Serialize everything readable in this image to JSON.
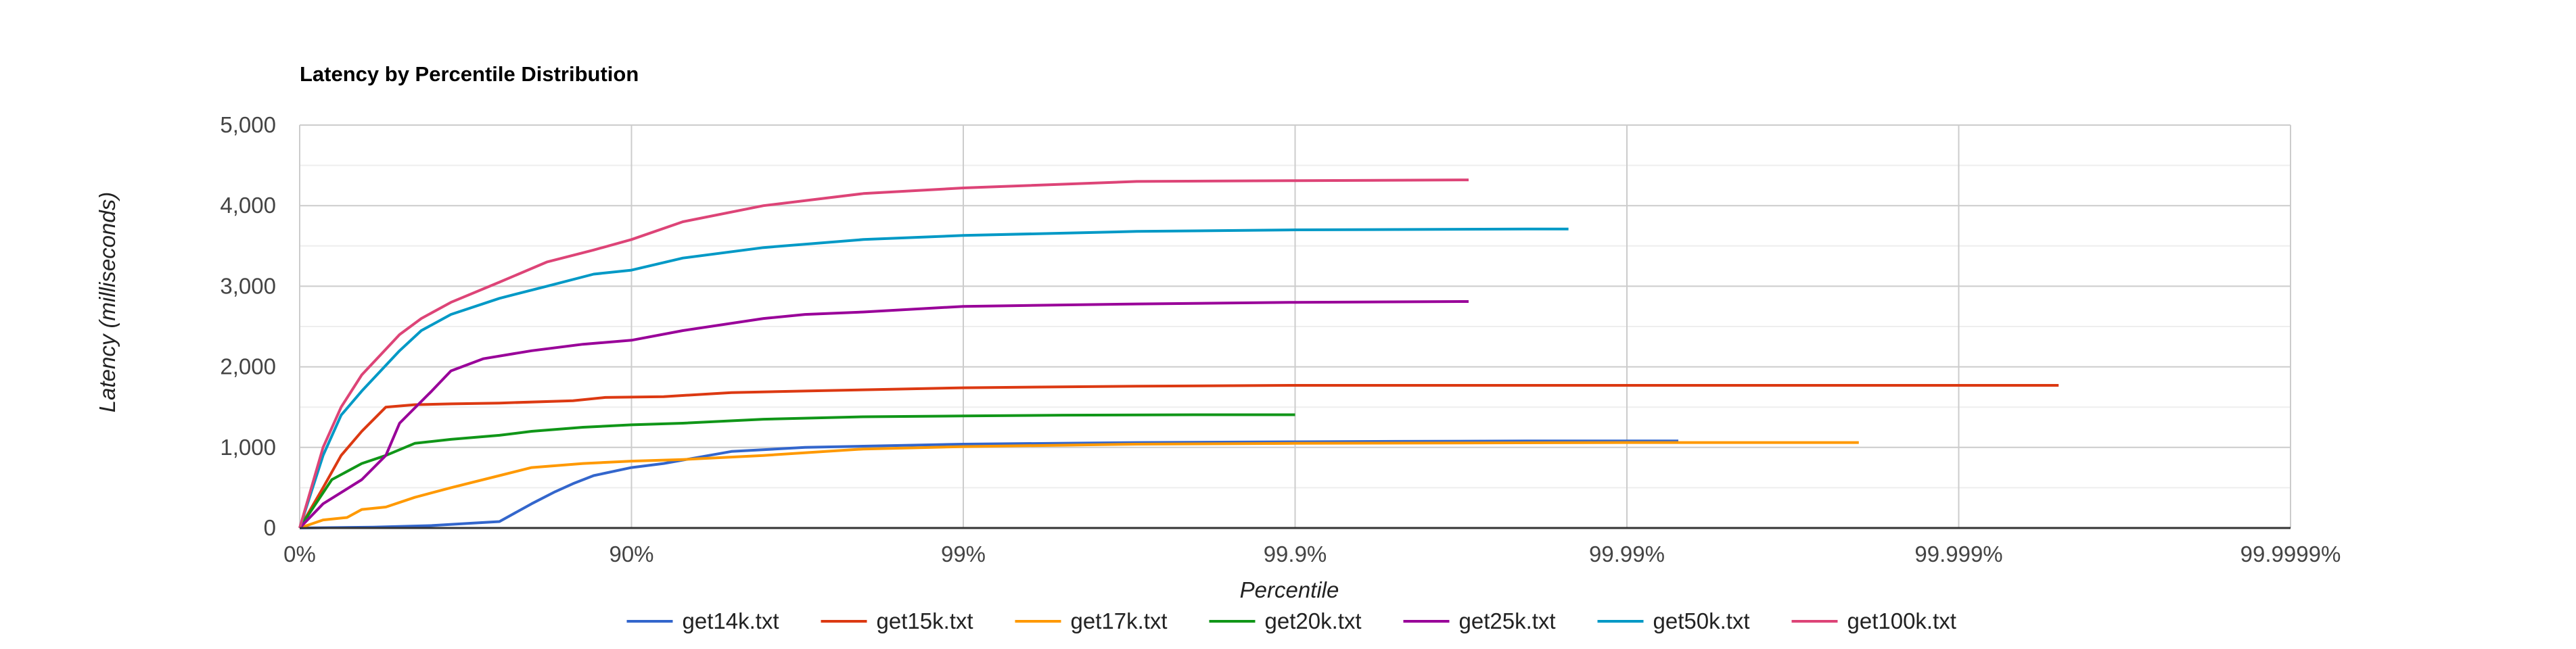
{
  "chart_data": {
    "type": "line",
    "title": "Latency by Percentile Distribution",
    "xlabel": "Percentile",
    "ylabel": "Latency (milliseconds)",
    "x_scale": "percentile-log (nines)",
    "x_ticks": [
      "0%",
      "90%",
      "99%",
      "99.9%",
      "99.99%",
      "99.999%",
      "99.9999%"
    ],
    "y_ticks": [
      "0",
      "1,000",
      "2,000",
      "3,000",
      "4,000",
      "5,000"
    ],
    "ylim": [
      0,
      5000
    ],
    "grid": true,
    "legend_position": "bottom",
    "series": [
      {
        "name": "get14k.txt",
        "color": "#3366cc",
        "points": [
          [
            0,
            0
          ],
          [
            40,
            10
          ],
          [
            60,
            30
          ],
          [
            70,
            60
          ],
          [
            75,
            80
          ],
          [
            80,
            300
          ],
          [
            83,
            450
          ],
          [
            85,
            550
          ],
          [
            87,
            650
          ],
          [
            90,
            750
          ],
          [
            92,
            800
          ],
          [
            95,
            950
          ],
          [
            97,
            1000
          ],
          [
            99,
            1040
          ],
          [
            99.7,
            1060
          ],
          [
            99.9,
            1070
          ],
          [
            99.95,
            1075
          ],
          [
            99.98,
            1080
          ],
          [
            99.993,
            1080
          ]
        ]
      },
      {
        "name": "get15k.txt",
        "color": "#dc3912",
        "points": [
          [
            0,
            0
          ],
          [
            15,
            500
          ],
          [
            25,
            900
          ],
          [
            35,
            1200
          ],
          [
            45,
            1500
          ],
          [
            55,
            1530
          ],
          [
            65,
            1540
          ],
          [
            75,
            1550
          ],
          [
            85,
            1580
          ],
          [
            88,
            1620
          ],
          [
            92,
            1630
          ],
          [
            95,
            1680
          ],
          [
            97,
            1700
          ],
          [
            99,
            1740
          ],
          [
            99.7,
            1760
          ],
          [
            99.9,
            1770
          ],
          [
            99.99,
            1770
          ],
          [
            99.999,
            1770
          ],
          [
            99.9995,
            1770
          ]
        ]
      },
      {
        "name": "get17k.txt",
        "color": "#ff9900",
        "points": [
          [
            0,
            0
          ],
          [
            15,
            100
          ],
          [
            28,
            130
          ],
          [
            35,
            230
          ],
          [
            45,
            260
          ],
          [
            55,
            380
          ],
          [
            65,
            500
          ],
          [
            75,
            650
          ],
          [
            80,
            750
          ],
          [
            86,
            800
          ],
          [
            90,
            830
          ],
          [
            93,
            850
          ],
          [
            96,
            900
          ],
          [
            98,
            980
          ],
          [
            99,
            1010
          ],
          [
            99.7,
            1040
          ],
          [
            99.9,
            1050
          ],
          [
            99.99,
            1060
          ],
          [
            99.998,
            1060
          ]
        ]
      },
      {
        "name": "get20k.txt",
        "color": "#109618",
        "points": [
          [
            0,
            0
          ],
          [
            20,
            600
          ],
          [
            35,
            800
          ],
          [
            45,
            900
          ],
          [
            55,
            1050
          ],
          [
            65,
            1100
          ],
          [
            75,
            1150
          ],
          [
            80,
            1200
          ],
          [
            86,
            1250
          ],
          [
            90,
            1280
          ],
          [
            93,
            1300
          ],
          [
            96,
            1350
          ],
          [
            98,
            1380
          ],
          [
            99,
            1390
          ],
          [
            99.5,
            1400
          ],
          [
            99.8,
            1405
          ],
          [
            99.9,
            1405
          ]
        ]
      },
      {
        "name": "get25k.txt",
        "color": "#990099",
        "points": [
          [
            0,
            0
          ],
          [
            15,
            300
          ],
          [
            35,
            600
          ],
          [
            45,
            900
          ],
          [
            50,
            1300
          ],
          [
            60,
            1700
          ],
          [
            65,
            1950
          ],
          [
            72,
            2100
          ],
          [
            80,
            2200
          ],
          [
            86,
            2280
          ],
          [
            90,
            2330
          ],
          [
            93,
            2450
          ],
          [
            96,
            2600
          ],
          [
            97,
            2650
          ],
          [
            98,
            2680
          ],
          [
            99,
            2750
          ],
          [
            99.7,
            2780
          ],
          [
            99.9,
            2800
          ],
          [
            99.97,
            2810
          ]
        ]
      },
      {
        "name": "get50k.txt",
        "color": "#0099c6",
        "points": [
          [
            0,
            0
          ],
          [
            15,
            900
          ],
          [
            25,
            1400
          ],
          [
            35,
            1700
          ],
          [
            50,
            2200
          ],
          [
            57,
            2450
          ],
          [
            65,
            2650
          ],
          [
            75,
            2850
          ],
          [
            82,
            3000
          ],
          [
            87,
            3150
          ],
          [
            90,
            3200
          ],
          [
            93,
            3350
          ],
          [
            96,
            3480
          ],
          [
            98,
            3580
          ],
          [
            99,
            3630
          ],
          [
            99.7,
            3680
          ],
          [
            99.9,
            3700
          ],
          [
            99.98,
            3710
          ],
          [
            99.985,
            3710
          ]
        ]
      },
      {
        "name": "get100k.txt",
        "color": "#dd4477",
        "points": [
          [
            0,
            0
          ],
          [
            15,
            1000
          ],
          [
            25,
            1500
          ],
          [
            35,
            1900
          ],
          [
            50,
            2400
          ],
          [
            57,
            2600
          ],
          [
            65,
            2800
          ],
          [
            75,
            3050
          ],
          [
            82,
            3300
          ],
          [
            87,
            3450
          ],
          [
            90,
            3580
          ],
          [
            93,
            3800
          ],
          [
            96,
            4000
          ],
          [
            98,
            4150
          ],
          [
            99,
            4220
          ],
          [
            99.7,
            4300
          ],
          [
            99.9,
            4310
          ],
          [
            99.97,
            4320
          ]
        ]
      }
    ]
  }
}
